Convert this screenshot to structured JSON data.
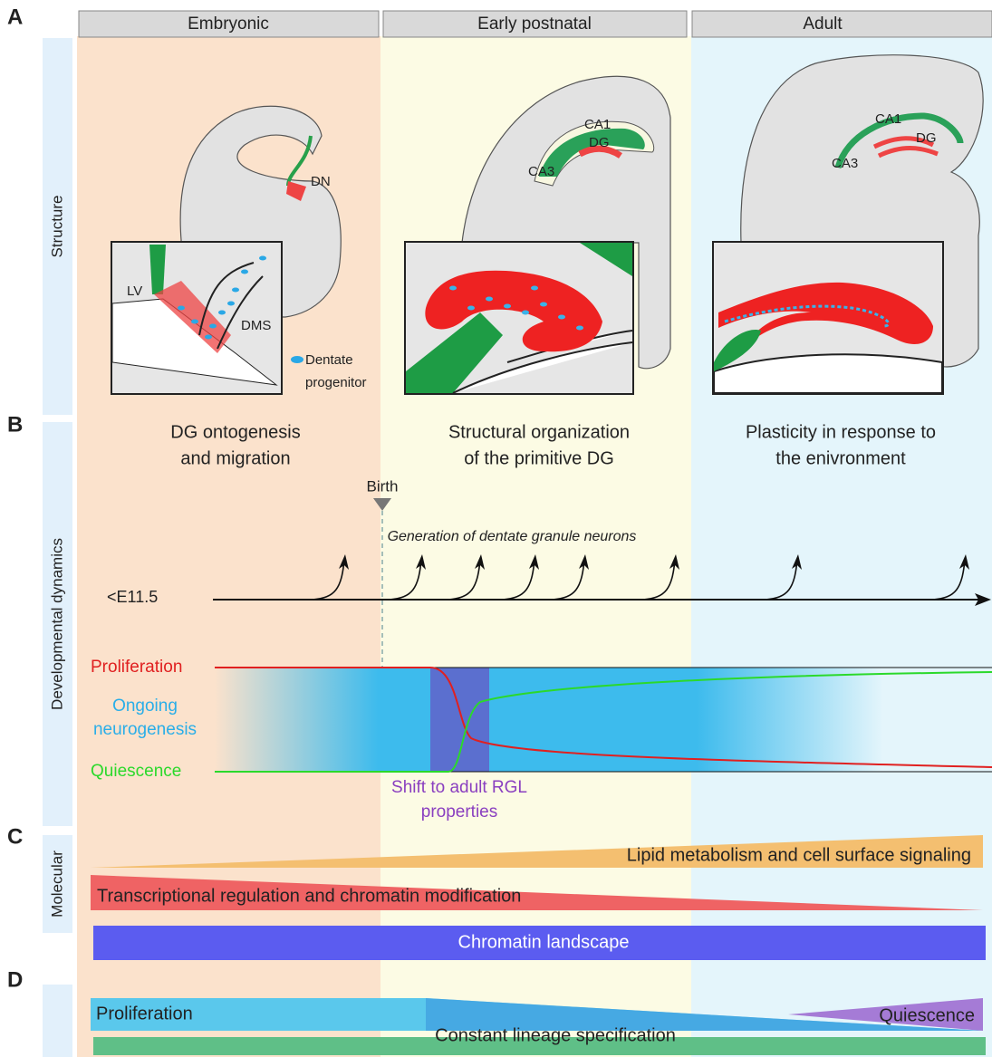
{
  "panel_letters": [
    "A",
    "B",
    "C",
    "D"
  ],
  "stages": [
    "Embryonic",
    "Early postnatal",
    "Adult"
  ],
  "row_labels": [
    "Structure",
    "Developmental dynamics",
    "Molecular"
  ],
  "structure": {
    "embryonic": {
      "labels": [
        "DN",
        "LV",
        "DMS"
      ],
      "legend": [
        "Dentate",
        "progenitor"
      ]
    },
    "postnatal": {
      "labels": [
        "CA1",
        "DG",
        "CA3"
      ]
    },
    "adult": {
      "labels": [
        "CA1",
        "DG",
        "CA3"
      ]
    }
  },
  "captions": [
    [
      "DG ontogenesis",
      "and migration"
    ],
    [
      "Structural organization",
      "of the primitive DG"
    ],
    [
      "Plasticity in response to",
      "the enivronment"
    ]
  ],
  "timeline": {
    "birth": "Birth",
    "title": "Generation of dentate granule neurons",
    "start": "<E11.5"
  },
  "states": {
    "proliferation": "Proliferation",
    "neurogenesis": [
      "Ongoing",
      "neurogenesis"
    ],
    "quiescence": "Quiescence",
    "shift": [
      "Shift to adult RGL",
      "properties"
    ]
  },
  "molecular": [
    "Lipid metabolism and cell surface signaling",
    "Transcriptional regulation and chromatin modification",
    "Chromatin landscape"
  ],
  "cellular": {
    "left": "Proliferation",
    "right": "Quiescence",
    "bottom": "Constant lineage specification"
  }
}
